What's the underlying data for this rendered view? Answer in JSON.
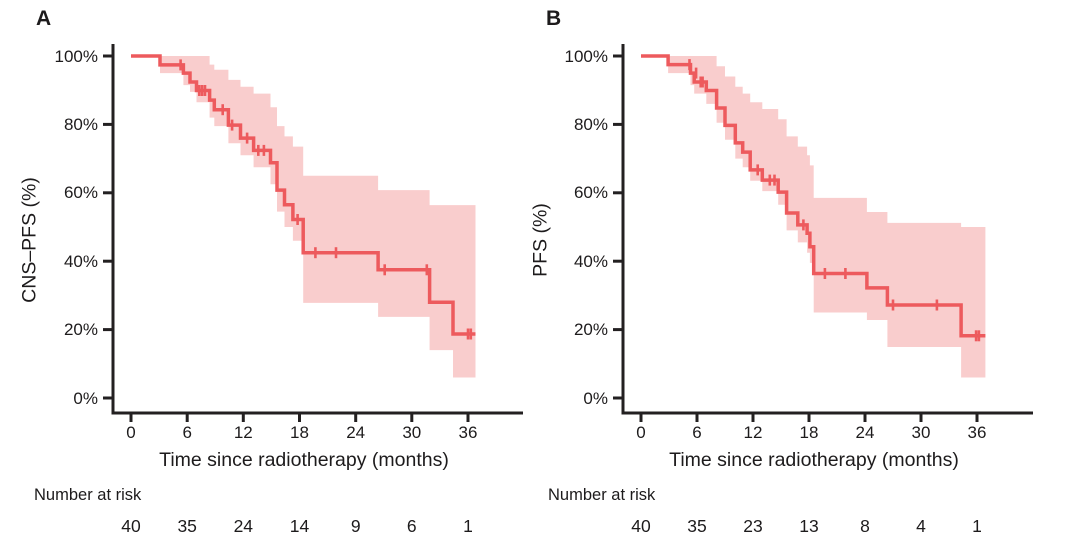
{
  "colors": {
    "curve": "#ed5a5d",
    "confidence_band": "#f9cdcd",
    "axis": "#232021",
    "text": "#1d1b1c",
    "background": "#ffffff"
  },
  "chart_data": [
    {
      "type": "line",
      "subtype": "kaplan_meier_step",
      "panel_label": "A",
      "title": "",
      "ylabel": "CNS–PFS (%)",
      "xlabel": "Time since radiotherapy (months)",
      "xlim": [
        0,
        42
      ],
      "ylim": [
        0,
        100
      ],
      "grid": false,
      "legend": "none",
      "x_ticks": [
        0,
        6,
        12,
        18,
        24,
        30,
        36
      ],
      "y_tick_values": [
        100,
        80,
        60,
        40,
        20,
        0
      ],
      "y_tick_labels": [
        "100%",
        "80%",
        "60%",
        "40%",
        "20%",
        "0%"
      ],
      "line_color": "#ed5a5d",
      "ci_color": "#f9cdcd",
      "end_time": 36.8,
      "steps": [
        [
          0,
          100
        ],
        [
          3.1,
          97.4
        ],
        [
          5.6,
          95.0
        ],
        [
          6.3,
          92.4
        ],
        [
          7.0,
          89.9
        ],
        [
          8.4,
          87.1
        ],
        [
          8.9,
          84.3
        ],
        [
          10.4,
          79.8
        ],
        [
          11.7,
          76.0
        ],
        [
          13.1,
          72.4
        ],
        [
          14.9,
          68.8
        ],
        [
          15.6,
          60.8
        ],
        [
          16.4,
          56.5
        ],
        [
          17.3,
          52.2
        ],
        [
          18.4,
          42.5
        ],
        [
          26.4,
          37.5
        ],
        [
          31.9,
          28.0
        ],
        [
          34.4,
          18.7
        ]
      ],
      "censor_marks": [
        [
          5.3,
          97.4
        ],
        [
          7.3,
          89.9
        ],
        [
          7.6,
          89.9
        ],
        [
          7.9,
          89.9
        ],
        [
          9.8,
          84.3
        ],
        [
          10.8,
          79.8
        ],
        [
          12.4,
          76.0
        ],
        [
          13.6,
          72.4
        ],
        [
          14.2,
          72.4
        ],
        [
          17.8,
          52.2
        ],
        [
          19.7,
          42.5
        ],
        [
          21.9,
          42.5
        ],
        [
          27.1,
          37.5
        ],
        [
          31.6,
          37.5
        ],
        [
          36.0,
          18.7
        ],
        [
          36.3,
          18.7
        ]
      ],
      "ci_steps": [
        [
          3.1,
          100,
          95.0
        ],
        [
          5.6,
          100,
          91.5
        ],
        [
          6.3,
          100,
          89.5
        ],
        [
          7.0,
          100,
          86.5
        ],
        [
          8.4,
          97.5,
          82.0
        ],
        [
          8.9,
          96.0,
          79.5
        ],
        [
          10.4,
          93.0,
          74.5
        ],
        [
          11.7,
          91.0,
          71.0
        ],
        [
          13.1,
          89.0,
          67.5
        ],
        [
          14.9,
          85.0,
          62.5
        ],
        [
          15.6,
          79.5,
          54.5
        ],
        [
          16.4,
          76.5,
          50.0
        ],
        [
          17.3,
          73.5,
          46.0
        ],
        [
          18.4,
          65.0,
          27.8
        ],
        [
          26.4,
          60.8,
          23.7
        ],
        [
          31.9,
          56.4,
          14.0
        ],
        [
          34.4,
          56.4,
          6.0
        ]
      ],
      "number_at_risk": {
        "label": "Number at risk",
        "times": [
          0,
          6,
          12,
          18,
          24,
          30,
          36
        ],
        "counts": [
          40,
          35,
          24,
          14,
          9,
          6,
          1
        ]
      }
    },
    {
      "type": "line",
      "subtype": "kaplan_meier_step",
      "panel_label": "B",
      "title": "",
      "ylabel": "PFS (%)",
      "xlabel": "Time since radiotherapy (months)",
      "xlim": [
        0,
        42
      ],
      "ylim": [
        0,
        100
      ],
      "grid": false,
      "legend": "none",
      "x_ticks": [
        0,
        6,
        12,
        18,
        24,
        30,
        36
      ],
      "y_tick_values": [
        100,
        80,
        60,
        40,
        20,
        0
      ],
      "y_tick_labels": [
        "100%",
        "80%",
        "60%",
        "40%",
        "20%",
        "0%"
      ],
      "line_color": "#ed5a5d",
      "ci_color": "#f9cdcd",
      "end_time": 36.9,
      "steps": [
        [
          0,
          100
        ],
        [
          2.9,
          97.5
        ],
        [
          5.3,
          95.0
        ],
        [
          5.7,
          92.4
        ],
        [
          7.0,
          89.9
        ],
        [
          8.1,
          84.8
        ],
        [
          9.0,
          79.7
        ],
        [
          10.1,
          74.6
        ],
        [
          10.9,
          71.9
        ],
        [
          11.7,
          66.7
        ],
        [
          13.0,
          63.7
        ],
        [
          14.7,
          60.2
        ],
        [
          15.6,
          54.1
        ],
        [
          16.8,
          50.6
        ],
        [
          17.8,
          48.2
        ],
        [
          18.1,
          44.2
        ],
        [
          18.5,
          36.4
        ],
        [
          24.2,
          32.2
        ],
        [
          26.4,
          27.2
        ],
        [
          34.3,
          18.2
        ]
      ],
      "censor_marks": [
        [
          5.2,
          97.5
        ],
        [
          5.9,
          95.0
        ],
        [
          6.4,
          92.4
        ],
        [
          6.6,
          92.4
        ],
        [
          12.5,
          66.7
        ],
        [
          13.8,
          63.7
        ],
        [
          14.3,
          63.7
        ],
        [
          17.4,
          50.6
        ],
        [
          19.7,
          36.4
        ],
        [
          21.9,
          36.4
        ],
        [
          27.0,
          27.2
        ],
        [
          31.7,
          27.2
        ],
        [
          35.9,
          18.2
        ],
        [
          36.2,
          18.2
        ]
      ],
      "ci_steps": [
        [
          2.9,
          100,
          95.0
        ],
        [
          5.3,
          100,
          91.5
        ],
        [
          5.7,
          100,
          89.0
        ],
        [
          7.0,
          100,
          86.0
        ],
        [
          8.1,
          97.0,
          80.5
        ],
        [
          9.0,
          94.0,
          75.5
        ],
        [
          10.1,
          91.0,
          70.0
        ],
        [
          10.9,
          89.0,
          67.5
        ],
        [
          11.7,
          86.5,
          63.5
        ],
        [
          13.0,
          84.5,
          60.5
        ],
        [
          14.7,
          81.5,
          56.5
        ],
        [
          15.6,
          76.5,
          49.0
        ],
        [
          16.8,
          73.5,
          45.5
        ],
        [
          17.8,
          71.0,
          42.5
        ],
        [
          18.1,
          68.0,
          39.5
        ],
        [
          18.5,
          58.5,
          25.0
        ],
        [
          24.2,
          54.4,
          22.8
        ],
        [
          26.4,
          51.2,
          14.9
        ],
        [
          34.3,
          50.0,
          6.0
        ]
      ],
      "number_at_risk": {
        "label": "Number at risk",
        "times": [
          0,
          6,
          12,
          18,
          24,
          30,
          36
        ],
        "counts": [
          40,
          35,
          23,
          13,
          8,
          4,
          1
        ]
      }
    }
  ]
}
